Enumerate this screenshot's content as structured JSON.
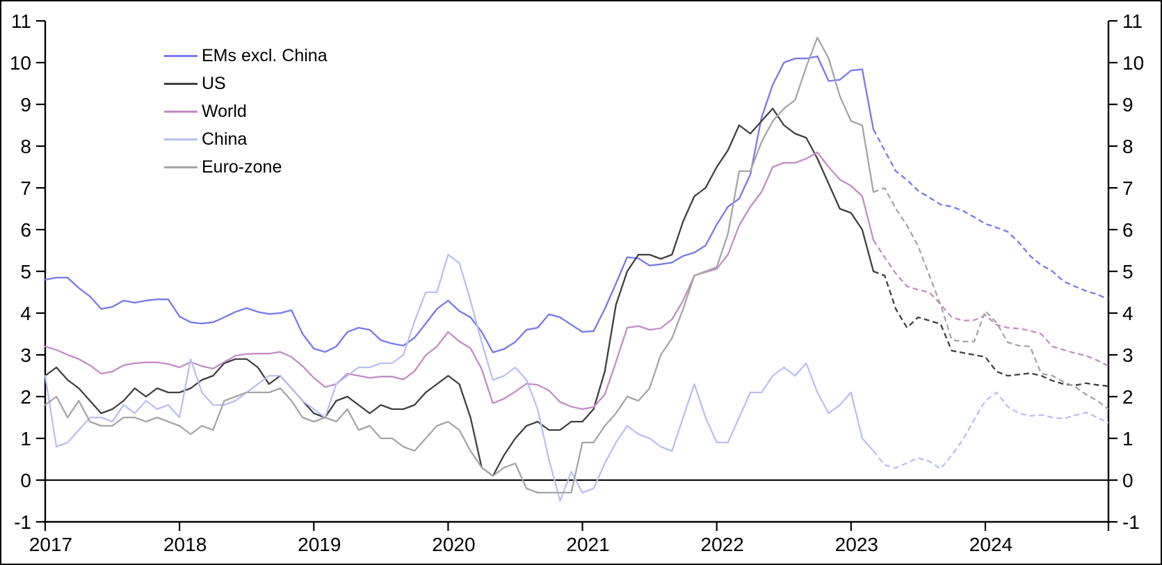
{
  "chart_data": {
    "type": "line",
    "title": "",
    "xlabel": "",
    "ylabel": "",
    "ylim": [
      -1,
      11
    ],
    "y_ticks": [
      -1,
      0,
      1,
      2,
      3,
      4,
      5,
      6,
      7,
      8,
      9,
      10,
      11
    ],
    "dual_y_axis": true,
    "grid": false,
    "zero_line": true,
    "legend_position": "top-left",
    "x_start": "2017-01",
    "x_end": "2024-12",
    "x_tick_labels": [
      "2017",
      "2018",
      "2019",
      "2020",
      "2021",
      "2022",
      "2023",
      "2024"
    ],
    "forecast_start_index": 74,
    "forecast_style": "dashed",
    "series": [
      {
        "name": "EMs excl. China",
        "color": "#7678ee",
        "values": [
          4.8,
          4.85,
          4.85,
          4.6,
          4.4,
          4.1,
          4.15,
          4.3,
          4.25,
          4.3,
          4.33,
          4.33,
          3.92,
          3.78,
          3.75,
          3.78,
          3.9,
          4.03,
          4.12,
          4.03,
          3.98,
          4.0,
          4.07,
          3.5,
          3.15,
          3.07,
          3.2,
          3.55,
          3.65,
          3.6,
          3.35,
          3.27,
          3.22,
          3.41,
          3.75,
          4.1,
          4.3,
          4.05,
          3.9,
          3.55,
          3.06,
          3.14,
          3.31,
          3.6,
          3.65,
          3.97,
          3.9,
          3.72,
          3.55,
          3.57,
          4.1,
          4.71,
          5.34,
          5.31,
          5.14,
          5.17,
          5.21,
          5.37,
          5.45,
          5.62,
          6.12,
          6.55,
          6.74,
          7.32,
          8.68,
          9.47,
          10.0,
          10.1,
          10.1,
          10.15,
          9.56,
          9.59,
          9.81,
          9.84,
          8.4,
          7.9,
          7.4,
          7.19,
          6.93,
          6.77,
          6.6,
          6.55,
          6.45,
          6.3,
          6.14,
          6.05,
          5.95,
          5.69,
          5.37,
          5.15,
          5.0,
          4.76,
          4.64,
          4.53,
          4.45,
          4.33
        ]
      },
      {
        "name": "US",
        "color": "#3f3f3f",
        "values": [
          2.5,
          2.7,
          2.4,
          2.2,
          1.9,
          1.6,
          1.7,
          1.9,
          2.2,
          2.0,
          2.2,
          2.1,
          2.1,
          2.2,
          2.4,
          2.5,
          2.8,
          2.9,
          2.9,
          2.7,
          2.3,
          2.5,
          2.2,
          1.9,
          1.6,
          1.5,
          1.9,
          2.0,
          1.8,
          1.6,
          1.8,
          1.7,
          1.7,
          1.8,
          2.1,
          2.3,
          2.5,
          2.3,
          1.5,
          0.3,
          0.1,
          0.6,
          1.0,
          1.3,
          1.4,
          1.2,
          1.2,
          1.4,
          1.4,
          1.7,
          2.6,
          4.2,
          5.0,
          5.4,
          5.4,
          5.3,
          5.4,
          6.2,
          6.8,
          7.0,
          7.5,
          7.9,
          8.5,
          8.3,
          8.6,
          8.9,
          8.5,
          8.3,
          8.2,
          7.7,
          7.1,
          6.5,
          6.4,
          6.0,
          5.0,
          4.9,
          4.1,
          3.65,
          3.9,
          3.82,
          3.74,
          3.1,
          3.05,
          3.0,
          2.95,
          2.6,
          2.5,
          2.53,
          2.56,
          2.5,
          2.38,
          2.3,
          2.27,
          2.32,
          2.28,
          2.25
        ]
      },
      {
        "name": "World",
        "color": "#c48bc8",
        "values": [
          3.2,
          3.12,
          3.0,
          2.9,
          2.75,
          2.55,
          2.6,
          2.75,
          2.8,
          2.82,
          2.82,
          2.78,
          2.7,
          2.83,
          2.73,
          2.67,
          2.83,
          2.98,
          3.02,
          3.03,
          3.03,
          3.07,
          2.95,
          2.73,
          2.45,
          2.23,
          2.3,
          2.55,
          2.5,
          2.45,
          2.48,
          2.48,
          2.41,
          2.61,
          2.99,
          3.2,
          3.55,
          3.32,
          3.16,
          2.66,
          1.84,
          1.95,
          2.12,
          2.31,
          2.28,
          2.15,
          1.87,
          1.76,
          1.7,
          1.75,
          2.05,
          2.83,
          3.65,
          3.69,
          3.6,
          3.64,
          3.85,
          4.3,
          4.9,
          4.98,
          5.06,
          5.4,
          6.1,
          6.55,
          6.9,
          7.5,
          7.6,
          7.6,
          7.7,
          7.85,
          7.5,
          7.2,
          7.05,
          6.8,
          5.75,
          5.34,
          4.95,
          4.64,
          4.56,
          4.5,
          4.21,
          3.9,
          3.82,
          3.83,
          3.95,
          3.72,
          3.65,
          3.63,
          3.58,
          3.5,
          3.2,
          3.12,
          3.04,
          2.98,
          2.87,
          2.73
        ]
      },
      {
        "name": "China",
        "color": "#b8bff4",
        "values": [
          2.5,
          0.8,
          0.9,
          1.2,
          1.5,
          1.5,
          1.4,
          1.8,
          1.6,
          1.9,
          1.7,
          1.8,
          1.5,
          2.9,
          2.1,
          1.8,
          1.8,
          1.9,
          2.1,
          2.3,
          2.5,
          2.5,
          2.2,
          1.9,
          1.7,
          1.5,
          2.3,
          2.5,
          2.7,
          2.7,
          2.8,
          2.8,
          3.0,
          3.8,
          4.5,
          4.5,
          5.4,
          5.2,
          4.3,
          3.3,
          2.4,
          2.5,
          2.7,
          2.4,
          1.7,
          0.5,
          -0.5,
          0.2,
          -0.3,
          -0.2,
          0.4,
          0.9,
          1.3,
          1.1,
          1.0,
          0.8,
          0.7,
          1.5,
          2.3,
          1.5,
          0.9,
          0.9,
          1.5,
          2.1,
          2.1,
          2.5,
          2.7,
          2.5,
          2.8,
          2.1,
          1.6,
          1.8,
          2.1,
          1.0,
          0.7,
          0.36,
          0.29,
          0.41,
          0.53,
          0.45,
          0.27,
          0.6,
          0.97,
          1.45,
          1.9,
          2.1,
          1.76,
          1.6,
          1.54,
          1.56,
          1.5,
          1.47,
          1.55,
          1.62,
          1.5,
          1.37
        ]
      },
      {
        "name": "Euro-zone",
        "color": "#a5a5a5",
        "values": [
          1.8,
          2.0,
          1.5,
          1.9,
          1.4,
          1.3,
          1.3,
          1.5,
          1.5,
          1.4,
          1.5,
          1.4,
          1.3,
          1.1,
          1.3,
          1.2,
          1.9,
          2.0,
          2.1,
          2.1,
          2.1,
          2.2,
          1.9,
          1.5,
          1.4,
          1.5,
          1.4,
          1.7,
          1.2,
          1.3,
          1.0,
          1.0,
          0.8,
          0.7,
          1.0,
          1.3,
          1.4,
          1.2,
          0.7,
          0.3,
          0.1,
          0.3,
          0.4,
          -0.2,
          -0.3,
          -0.3,
          -0.3,
          -0.3,
          0.9,
          0.9,
          1.3,
          1.6,
          2.0,
          1.9,
          2.2,
          3.0,
          3.4,
          4.1,
          4.9,
          5.0,
          5.1,
          5.9,
          7.4,
          7.4,
          8.1,
          8.6,
          8.9,
          9.1,
          9.9,
          10.6,
          10.1,
          9.2,
          8.6,
          8.5,
          6.9,
          7.0,
          6.5,
          6.1,
          5.6,
          4.9,
          4.2,
          3.36,
          3.32,
          3.32,
          4.05,
          3.77,
          3.3,
          3.22,
          3.2,
          2.55,
          2.5,
          2.35,
          2.24,
          2.05,
          1.9,
          1.7
        ]
      }
    ]
  }
}
